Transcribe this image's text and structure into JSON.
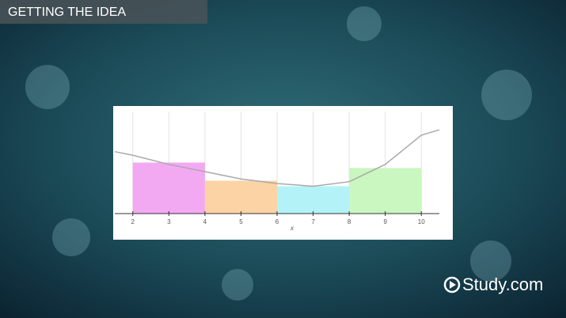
{
  "header": {
    "title": "GETTING THE IDEA"
  },
  "logo": "Study.com",
  "chart_data": {
    "type": "histogram",
    "bins": [
      2,
      4,
      6,
      8,
      10
    ],
    "values": [
      2.8,
      1.8,
      1.5,
      2.5
    ],
    "colors": [
      "#f2a9f2",
      "#fbd3a5",
      "#b3f3f8",
      "#c9f7bf"
    ],
    "line": {
      "x": [
        1.5,
        2,
        3,
        4,
        5,
        6,
        7,
        8,
        9,
        10,
        10.5
      ],
      "values": [
        3.4,
        3.2,
        2.7,
        2.3,
        1.9,
        1.65,
        1.5,
        1.75,
        2.7,
        4.3,
        4.6
      ],
      "color": "#a9a9a9"
    },
    "xlabel": "x",
    "xticks": [
      2,
      3,
      4,
      5,
      6,
      7,
      8,
      9,
      10
    ],
    "xlim": [
      1.5,
      10.5
    ],
    "ylim": [
      0,
      5.6
    ],
    "grid": true
  }
}
